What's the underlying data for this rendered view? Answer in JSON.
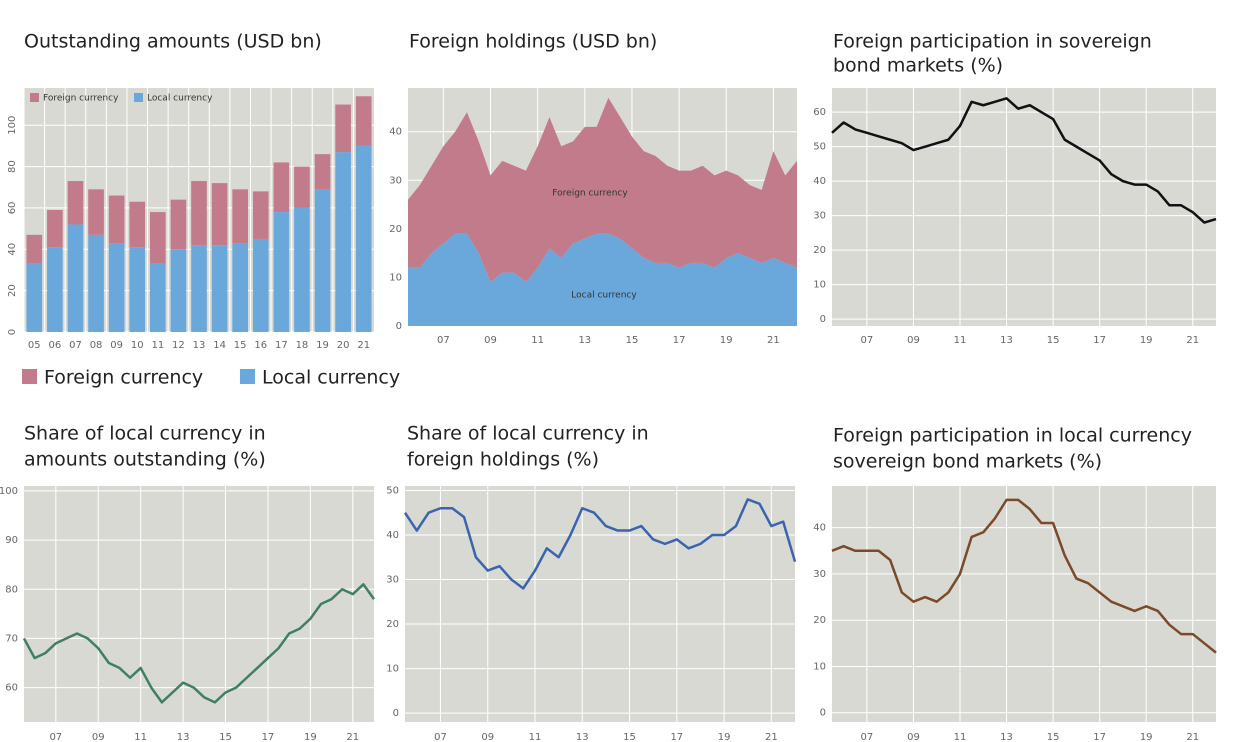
{
  "chart_data": [
    {
      "type": "bar",
      "title": [
        "Outstanding amounts (USD bn)"
      ],
      "categories": [
        "05",
        "06",
        "07",
        "08",
        "09",
        "10",
        "11",
        "12",
        "13",
        "14",
        "15",
        "16",
        "17",
        "18",
        "19",
        "20",
        "21"
      ],
      "series": [
        {
          "name": "Local currency",
          "color": "#6aa8dc",
          "values": [
            33,
            41,
            52,
            47,
            43,
            41,
            33,
            40,
            42,
            42,
            43,
            45,
            58,
            60,
            69,
            87,
            90
          ]
        },
        {
          "name": "Foreign currency",
          "color": "#c27b8a",
          "values": [
            14,
            18,
            21,
            22,
            23,
            22,
            25,
            24,
            31,
            30,
            26,
            23,
            24,
            20,
            17,
            23,
            24
          ]
        }
      ],
      "ylim": [
        0,
        118
      ],
      "yticks": [
        0,
        20,
        40,
        60,
        80,
        100
      ],
      "grid": true
    },
    {
      "type": "area",
      "title": [
        "Foreign holdings (USD bn)"
      ],
      "x": [
        2005.5,
        2006,
        2006.5,
        2007,
        2007.5,
        2008,
        2008.5,
        2009,
        2009.5,
        2010,
        2010.5,
        2011,
        2011.5,
        2012,
        2012.5,
        2013,
        2013.5,
        2014,
        2014.5,
        2015,
        2015.5,
        2016,
        2016.5,
        2017,
        2017.5,
        2018,
        2018.5,
        2019,
        2019.5,
        2020,
        2020.5,
        2021,
        2021.5,
        2022
      ],
      "series": [
        {
          "name": "Local currency",
          "color": "#6aa8dc",
          "values": [
            12,
            12,
            15,
            17,
            19,
            19,
            15,
            9,
            11,
            11,
            9,
            12,
            16,
            14,
            17,
            18,
            19,
            19,
            18,
            16,
            14,
            13,
            13,
            12,
            13,
            13,
            12,
            14,
            15,
            14,
            13,
            14,
            13,
            12
          ]
        },
        {
          "name": "Foreign currency",
          "color": "#c27b8a",
          "values": [
            14,
            17,
            18,
            20,
            21,
            25,
            23,
            22,
            23,
            22,
            23,
            25,
            27,
            23,
            21,
            23,
            22,
            28,
            25,
            23,
            22,
            22,
            20,
            20,
            19,
            20,
            19,
            18,
            16,
            15,
            15,
            22,
            18,
            22
          ]
        }
      ],
      "xlim": [
        2005.5,
        2022
      ],
      "xticks": [
        {
          "value": 2007,
          "label": "07"
        },
        {
          "value": 2009,
          "label": "09"
        },
        {
          "value": 2011,
          "label": "11"
        },
        {
          "value": 2013,
          "label": "13"
        },
        {
          "value": 2015,
          "label": "15"
        },
        {
          "value": 2017,
          "label": "17"
        },
        {
          "value": 2019,
          "label": "19"
        },
        {
          "value": 2021,
          "label": "21"
        }
      ],
      "ylim": [
        0,
        49
      ],
      "yticks": [
        0,
        10,
        20,
        30,
        40
      ],
      "grid": true
    },
    {
      "type": "line",
      "title": [
        "Foreign participation in sovereign",
        "bond markets (%)"
      ],
      "x": [
        2005.5,
        2006,
        2006.5,
        2007,
        2007.5,
        2008,
        2008.5,
        2009,
        2009.5,
        2010,
        2010.5,
        2011,
        2011.5,
        2012,
        2012.5,
        2013,
        2013.5,
        2014,
        2014.5,
        2015,
        2015.5,
        2016,
        2016.5,
        2017,
        2017.5,
        2018,
        2018.5,
        2019,
        2019.5,
        2020,
        2020.5,
        2021,
        2021.5,
        2022
      ],
      "series": [
        {
          "color": "#111111",
          "values": [
            54,
            57,
            55,
            54,
            53,
            52,
            51,
            49,
            50,
            51,
            52,
            56,
            63,
            62,
            63,
            64,
            61,
            62,
            60,
            58,
            52,
            50,
            48,
            46,
            42,
            40,
            39,
            39,
            37,
            33,
            33,
            31,
            28,
            29
          ]
        }
      ],
      "xlim": [
        2005.5,
        2022
      ],
      "xticks": [
        {
          "value": 2007,
          "label": "07"
        },
        {
          "value": 2009,
          "label": "09"
        },
        {
          "value": 2011,
          "label": "11"
        },
        {
          "value": 2013,
          "label": "13"
        },
        {
          "value": 2015,
          "label": "15"
        },
        {
          "value": 2017,
          "label": "17"
        },
        {
          "value": 2019,
          "label": "19"
        },
        {
          "value": 2021,
          "label": "21"
        }
      ],
      "ylim": [
        -2,
        67
      ],
      "yticks": [
        0,
        10,
        20,
        30,
        40,
        50,
        60
      ],
      "grid": true
    },
    {
      "type": "line",
      "title": [
        "Share of local currency in",
        "amounts outstanding (%)"
      ],
      "x": [
        2005.5,
        2006,
        2006.5,
        2007,
        2007.5,
        2008,
        2008.5,
        2009,
        2009.5,
        2010,
        2010.5,
        2011,
        2011.5,
        2012,
        2012.5,
        2013,
        2013.5,
        2014,
        2014.5,
        2015,
        2015.5,
        2016,
        2016.5,
        2017,
        2017.5,
        2018,
        2018.5,
        2019,
        2019.5,
        2020,
        2020.5,
        2021,
        2021.5,
        2022
      ],
      "series": [
        {
          "color": "#3f7f65",
          "values": [
            70,
            66,
            67,
            69,
            70,
            71,
            70,
            68,
            65,
            64,
            62,
            64,
            60,
            57,
            59,
            61,
            60,
            58,
            57,
            59,
            60,
            62,
            64,
            66,
            68,
            71,
            72,
            74,
            77,
            78,
            80,
            79,
            81,
            78
          ]
        }
      ],
      "xlim": [
        2005.5,
        2022
      ],
      "xticks": [
        {
          "value": 2007,
          "label": "07"
        },
        {
          "value": 2009,
          "label": "09"
        },
        {
          "value": 2011,
          "label": "11"
        },
        {
          "value": 2013,
          "label": "13"
        },
        {
          "value": 2015,
          "label": "15"
        },
        {
          "value": 2017,
          "label": "17"
        },
        {
          "value": 2019,
          "label": "19"
        },
        {
          "value": 2021,
          "label": "21"
        }
      ],
      "ylim": [
        53,
        101
      ],
      "yticks": [
        60,
        70,
        80,
        90,
        100
      ],
      "grid": true
    },
    {
      "type": "line",
      "title": [
        "Share of local currency in",
        "foreign holdings (%)"
      ],
      "x": [
        2005.5,
        2006,
        2006.5,
        2007,
        2007.5,
        2008,
        2008.5,
        2009,
        2009.5,
        2010,
        2010.5,
        2011,
        2011.5,
        2012,
        2012.5,
        2013,
        2013.5,
        2014,
        2014.5,
        2015,
        2015.5,
        2016,
        2016.5,
        2017,
        2017.5,
        2018,
        2018.5,
        2019,
        2019.5,
        2020,
        2020.5,
        2021,
        2021.5,
        2022
      ],
      "series": [
        {
          "color": "#3a64ad",
          "values": [
            45,
            41,
            45,
            46,
            46,
            44,
            35,
            32,
            33,
            30,
            28,
            32,
            37,
            35,
            40,
            46,
            45,
            42,
            41,
            41,
            42,
            39,
            38,
            39,
            37,
            38,
            40,
            40,
            42,
            48,
            47,
            42,
            43,
            34
          ]
        }
      ],
      "xlim": [
        2005.5,
        2022
      ],
      "xticks": [
        {
          "value": 2007,
          "label": "07"
        },
        {
          "value": 2009,
          "label": "09"
        },
        {
          "value": 2011,
          "label": "11"
        },
        {
          "value": 2013,
          "label": "13"
        },
        {
          "value": 2015,
          "label": "15"
        },
        {
          "value": 2017,
          "label": "17"
        },
        {
          "value": 2019,
          "label": "19"
        },
        {
          "value": 2021,
          "label": "21"
        }
      ],
      "ylim": [
        -2,
        51
      ],
      "yticks": [
        0,
        10,
        20,
        30,
        40,
        50
      ],
      "grid": true
    },
    {
      "type": "line",
      "title": [
        "Foreign participation in local currency",
        "sovereign bond markets (%)"
      ],
      "x": [
        2005.5,
        2006,
        2006.5,
        2007,
        2007.5,
        2008,
        2008.5,
        2009,
        2009.5,
        2010,
        2010.5,
        2011,
        2011.5,
        2012,
        2012.5,
        2013,
        2013.5,
        2014,
        2014.5,
        2015,
        2015.5,
        2016,
        2016.5,
        2017,
        2017.5,
        2018,
        2018.5,
        2019,
        2019.5,
        2020,
        2020.5,
        2021,
        2021.5,
        2022
      ],
      "series": [
        {
          "color": "#7b4a2a",
          "values": [
            35,
            36,
            35,
            35,
            35,
            33,
            26,
            24,
            25,
            24,
            26,
            30,
            38,
            39,
            42,
            46,
            46,
            44,
            41,
            41,
            34,
            29,
            28,
            26,
            24,
            23,
            22,
            23,
            22,
            19,
            17,
            17,
            15,
            13
          ]
        }
      ],
      "xlim": [
        2005.5,
        2022
      ],
      "xticks": [
        {
          "value": 2007,
          "label": "07"
        },
        {
          "value": 2009,
          "label": "09"
        },
        {
          "value": 2011,
          "label": "11"
        },
        {
          "value": 2013,
          "label": "13"
        },
        {
          "value": 2015,
          "label": "15"
        },
        {
          "value": 2017,
          "label": "17"
        },
        {
          "value": 2019,
          "label": "19"
        },
        {
          "value": 2021,
          "label": "21"
        }
      ],
      "ylim": [
        -2,
        49
      ],
      "yticks": [
        0,
        10,
        20,
        30,
        40
      ],
      "grid": true
    }
  ]
}
